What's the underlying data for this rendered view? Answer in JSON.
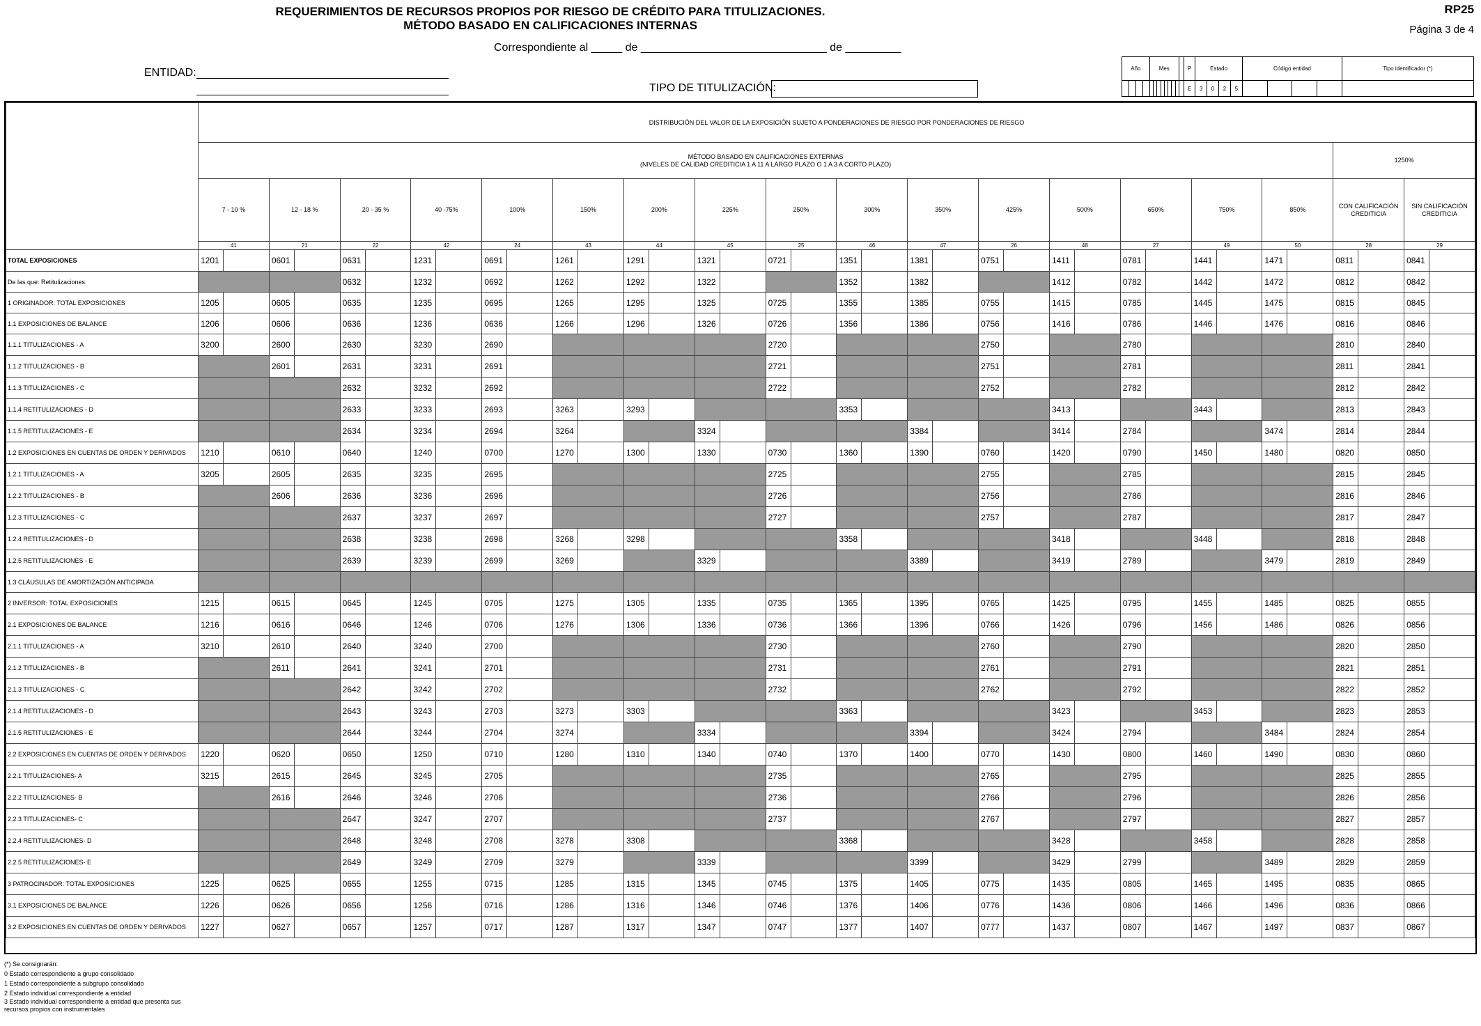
{
  "header": {
    "title_line1": "REQUERIMIENTOS DE RECURSOS PROPIOS POR RIESGO DE CRÉDITO PARA TITULIZACIONES.",
    "title_line2": "MÉTODO BASADO EN CALIFICACIONES INTERNAS",
    "form_code": "RP25",
    "page": "Página 3 de 4",
    "correspondiente": "Correspondiente al _____ de ______________________________ de _________",
    "entidad_label": "ENTIDAD:",
    "tipo_label": "TIPO DE TITULIZACIÓN:"
  },
  "idbox": {
    "labels": [
      "Año",
      "Mes",
      "P",
      "Estado",
      "Código entidad",
      "Tipo identificador (*)"
    ],
    "estado_values": [
      "E",
      "3",
      "0",
      "2",
      "5"
    ]
  },
  "grid": {
    "main_header": "DISTRIBUCIÓN DEL VALOR DE LA EXPOSICIÓN SUJETO A PONDERACIONES DE RIESGO POR PONDERACIONES DE RIESGO",
    "sub_header_line1": "MÉTODO BASADO EN CALIFICACIONES EXTERNAS",
    "sub_header_line2": "(NIVELES DE CALIDAD CREDITICIA 1 A 11 A LARGO PLAZO O 1 A 3 A CORTO PLAZO)",
    "pct_1250": "1250%",
    "columns": [
      {
        "label": "7 - 10 %",
        "num": "41"
      },
      {
        "label": "12 - 18 %",
        "num": "21"
      },
      {
        "label": "20 - 35 %",
        "num": "22"
      },
      {
        "label": "40 -75%",
        "num": "42"
      },
      {
        "label": "100%",
        "num": "24"
      },
      {
        "label": "150%",
        "num": "43"
      },
      {
        "label": "200%",
        "num": "44"
      },
      {
        "label": "225%",
        "num": "45"
      },
      {
        "label": "250%",
        "num": "25"
      },
      {
        "label": "300%",
        "num": "46"
      },
      {
        "label": "350%",
        "num": "47"
      },
      {
        "label": "425%",
        "num": "26"
      },
      {
        "label": "500%",
        "num": "48"
      },
      {
        "label": "650%",
        "num": "27"
      },
      {
        "label": "750%",
        "num": "49"
      },
      {
        "label": "850%",
        "num": "50"
      },
      {
        "label": "CON CALIFICACIÓN CREDITICIA",
        "num": "28"
      },
      {
        "label": "SIN CALIFICACIÓN CREDITICIA",
        "num": "29"
      }
    ],
    "rows": [
      {
        "label": "TOTAL EXPOSICIONES",
        "bold": true,
        "cells": [
          "1201",
          "0601",
          "0631",
          "1231",
          "0691",
          "1261",
          "1291",
          "1321",
          "0721",
          "1351",
          "1381",
          "0751",
          "1411",
          "0781",
          "1441",
          "1471",
          "0811",
          "0841"
        ]
      },
      {
        "label": "De las que: Retitulizaciones",
        "cells": [
          "G",
          "G",
          "0632",
          "1232",
          "0692",
          "1262",
          "1292",
          "1322",
          "G",
          "1352",
          "1382",
          "G",
          "1412",
          "0782",
          "1442",
          "1472",
          "0812",
          "0842"
        ]
      },
      {
        "label": "1 ORIGINADOR: TOTAL EXPOSICIONES",
        "cells": [
          "1205",
          "0605",
          "0635",
          "1235",
          "0695",
          "1265",
          "1295",
          "1325",
          "0725",
          "1355",
          "1385",
          "0755",
          "1415",
          "0785",
          "1445",
          "1475",
          "0815",
          "0845"
        ]
      },
      {
        "label": "1.1 EXPOSICIONES DE BALANCE",
        "cells": [
          "1206",
          "0606",
          "0636",
          "1236",
          "0636",
          "1266",
          "1296",
          "1326",
          "0726",
          "1356",
          "1386",
          "0756",
          "1416",
          "0786",
          "1446",
          "1476",
          "0816",
          "0846"
        ]
      },
      {
        "label": "1.1.1 TITULIZACIONES - A",
        "cells": [
          "3200",
          "2600",
          "2630",
          "3230",
          "2690",
          "G",
          "G",
          "G",
          "2720",
          "G",
          "G",
          "2750",
          "G",
          "2780",
          "G",
          "G",
          "2810",
          "2840"
        ]
      },
      {
        "label": "1.1.2 TITULIZACIONES - B",
        "cells": [
          "G",
          "2601",
          "2631",
          "3231",
          "2691",
          "G",
          "G",
          "G",
          "2721",
          "G",
          "G",
          "2751",
          "G",
          "2781",
          "G",
          "G",
          "2811",
          "2841"
        ]
      },
      {
        "label": "1.1.3 TITULIZACIONES - C",
        "cells": [
          "G",
          "G",
          "2632",
          "3232",
          "2692",
          "G",
          "G",
          "G",
          "2722",
          "G",
          "G",
          "2752",
          "G",
          "2782",
          "G",
          "G",
          "2812",
          "2842"
        ]
      },
      {
        "label": "1.1.4 RETITULIZACIONES - D",
        "cells": [
          "G",
          "G",
          "2633",
          "3233",
          "2693",
          "3263",
          "3293",
          "G",
          "G",
          "3353",
          "G",
          "G",
          "3413",
          "G",
          "3443",
          "G",
          "2813",
          "2843"
        ]
      },
      {
        "label": "1.1.5 RETITULIZACIONES - E",
        "cells": [
          "G",
          "G",
          "2634",
          "3234",
          "2694",
          "3264",
          "G",
          "3324",
          "G",
          "G",
          "3384",
          "G",
          "3414",
          "2784",
          "G",
          "3474",
          "2814",
          "2844"
        ]
      },
      {
        "label": "1.2 EXPOSICIONES EN CUENTAS DE ORDEN Y DERIVADOS",
        "cells": [
          "1210",
          "0610",
          "0640",
          "1240",
          "0700",
          "1270",
          "1300",
          "1330",
          "0730",
          "1360",
          "1390",
          "0760",
          "1420",
          "0790",
          "1450",
          "1480",
          "0820",
          "0850"
        ]
      },
      {
        "label": "1.2.1 TITULIZACIONES - A",
        "cells": [
          "3205",
          "2605",
          "2635",
          "3235",
          "2695",
          "G",
          "G",
          "G",
          "2725",
          "G",
          "G",
          "2755",
          "G",
          "2785",
          "G",
          "G",
          "2815",
          "2845"
        ]
      },
      {
        "label": "1.2.2 TITULIZACIONES - B",
        "cells": [
          "G",
          "2606",
          "2636",
          "3236",
          "2696",
          "G",
          "G",
          "G",
          "2726",
          "G",
          "G",
          "2756",
          "G",
          "2786",
          "G",
          "G",
          "2816",
          "2846"
        ]
      },
      {
        "label": "1.2.3 TITULIZACIONES - C",
        "cells": [
          "G",
          "G",
          "2637",
          "3237",
          "2697",
          "G",
          "G",
          "G",
          "2727",
          "G",
          "G",
          "2757",
          "G",
          "2787",
          "G",
          "G",
          "2817",
          "2847"
        ]
      },
      {
        "label": "1.2.4 RETITULIZACIONES - D",
        "cells": [
          "G",
          "G",
          "2638",
          "3238",
          "2698",
          "3268",
          "3298",
          "G",
          "G",
          "3358",
          "G",
          "G",
          "3418",
          "G",
          "3448",
          "G",
          "2818",
          "2848"
        ]
      },
      {
        "label": "1.2.5 RETITULIZACIONES - E",
        "cells": [
          "G",
          "G",
          "2639",
          "3239",
          "2699",
          "3269",
          "G",
          "3329",
          "G",
          "G",
          "3389",
          "G",
          "3419",
          "2789",
          "G",
          "3479",
          "2819",
          "2849"
        ]
      },
      {
        "label": "1.3 CLÁUSULAS DE AMORTIZACIÓN ANTICIPADA",
        "cells": [
          "G",
          "G",
          "G",
          "G",
          "G",
          "G",
          "G",
          "G",
          "G",
          "G",
          "G",
          "G",
          "G",
          "G",
          "G",
          "G",
          "G",
          "G"
        ]
      },
      {
        "label": "2 INVERSOR: TOTAL EXPOSICIONES",
        "cells": [
          "1215",
          "0615",
          "0645",
          "1245",
          "0705",
          "1275",
          "1305",
          "1335",
          "0735",
          "1365",
          "1395",
          "0765",
          "1425",
          "0795",
          "1455",
          "1485",
          "0825",
          "0855"
        ]
      },
      {
        "label": "2.1 EXPOSICIONES DE BALANCE",
        "cells": [
          "1216",
          "0616",
          "0646",
          "1246",
          "0706",
          "1276",
          "1306",
          "1336",
          "0736",
          "1366",
          "1396",
          "0766",
          "1426",
          "0796",
          "1456",
          "1486",
          "0826",
          "0856"
        ]
      },
      {
        "label": "2.1.1 TITULIZACIONES - A",
        "cells": [
          "3210",
          "2610",
          "2640",
          "3240",
          "2700",
          "G",
          "G",
          "G",
          "2730",
          "G",
          "G",
          "2760",
          "G",
          "2790",
          "G",
          "G",
          "2820",
          "2850"
        ]
      },
      {
        "label": "2.1.2 TITULIZACIONES - B",
        "cells": [
          "G",
          "2611",
          "2641",
          "3241",
          "2701",
          "G",
          "G",
          "G",
          "2731",
          "G",
          "G",
          "2761",
          "G",
          "2791",
          "G",
          "G",
          "2821",
          "2851"
        ]
      },
      {
        "label": "2.1.3 TITULIZACIONES - C",
        "cells": [
          "G",
          "G",
          "2642",
          "3242",
          "2702",
          "G",
          "G",
          "G",
          "2732",
          "G",
          "G",
          "2762",
          "G",
          "2792",
          "G",
          "G",
          "2822",
          "2852"
        ]
      },
      {
        "label": "2.1.4 RETITULIZACIONES - D",
        "cells": [
          "G",
          "G",
          "2643",
          "3243",
          "2703",
          "3273",
          "3303",
          "G",
          "G",
          "3363",
          "G",
          "G",
          "3423",
          "G",
          "3453",
          "G",
          "2823",
          "2853"
        ]
      },
      {
        "label": "2.1.5 RETITULIZACIONES - E",
        "cells": [
          "G",
          "G",
          "2644",
          "3244",
          "2704",
          "3274",
          "G",
          "3334",
          "G",
          "G",
          "3394",
          "G",
          "3424",
          "2794",
          "G",
          "3484",
          "2824",
          "2854"
        ]
      },
      {
        "label": "2.2 EXPOSICIONES EN CUENTAS DE ORDEN Y DERIVADOS",
        "cells": [
          "1220",
          "0620",
          "0650",
          "1250",
          "0710",
          "1280",
          "1310",
          "1340",
          "0740",
          "1370",
          "1400",
          "0770",
          "1430",
          "0800",
          "1460",
          "1490",
          "0830",
          "0860"
        ]
      },
      {
        "label": "2.2.1 TITULIZACIONES- A",
        "cells": [
          "3215",
          "2615",
          "2645",
          "3245",
          "2705",
          "G",
          "G",
          "G",
          "2735",
          "G",
          "G",
          "2765",
          "G",
          "2795",
          "G",
          "G",
          "2825",
          "2855"
        ]
      },
      {
        "label": "2.2.2 TITULIZACIONES- B",
        "cells": [
          "G",
          "2616",
          "2646",
          "3246",
          "2706",
          "G",
          "G",
          "G",
          "2736",
          "G",
          "G",
          "2766",
          "G",
          "2796",
          "G",
          "G",
          "2826",
          "2856"
        ]
      },
      {
        "label": "2.2.3 TITULIZACIONES- C",
        "cells": [
          "G",
          "G",
          "2647",
          "3247",
          "2707",
          "G",
          "G",
          "G",
          "2737",
          "G",
          "G",
          "2767",
          "G",
          "2797",
          "G",
          "G",
          "2827",
          "2857"
        ]
      },
      {
        "label": "2.2.4 RETITULIZACIONES- D",
        "cells": [
          "G",
          "G",
          "2648",
          "3248",
          "2708",
          "3278",
          "3308",
          "G",
          "G",
          "3368",
          "G",
          "G",
          "3428",
          "G",
          "3458",
          "G",
          "2828",
          "2858"
        ]
      },
      {
        "label": "2.2.5 RETITULIZACIONES- E",
        "cells": [
          "G",
          "G",
          "2649",
          "3249",
          "2709",
          "3279",
          "G",
          "3339",
          "G",
          "G",
          "3399",
          "G",
          "3429",
          "2799",
          "G",
          "3489",
          "2829",
          "2859"
        ]
      },
      {
        "label": "3 PATROCINADOR: TOTAL EXPOSICIONES",
        "cells": [
          "1225",
          "0625",
          "0655",
          "1255",
          "0715",
          "1285",
          "1315",
          "1345",
          "0745",
          "1375",
          "1405",
          "0775",
          "1435",
          "0805",
          "1465",
          "1495",
          "0835",
          "0865"
        ]
      },
      {
        "label": "3.1 EXPOSICIONES DE BALANCE",
        "cells": [
          "1226",
          "0626",
          "0656",
          "1256",
          "0716",
          "1286",
          "1316",
          "1346",
          "0746",
          "1376",
          "1406",
          "0776",
          "1436",
          "0806",
          "1466",
          "1496",
          "0836",
          "0866"
        ]
      },
      {
        "label": "3.2 EXPOSICIONES EN CUENTAS DE ORDEN Y DERIVADOS",
        "cells": [
          "1227",
          "0627",
          "0657",
          "1257",
          "0717",
          "1287",
          "1317",
          "1347",
          "0747",
          "1377",
          "1407",
          "0777",
          "1437",
          "0807",
          "1467",
          "1497",
          "0837",
          "0867"
        ]
      }
    ]
  },
  "notes": [
    "(*) Se consignarán:",
    "0 Estado correspondiente a grupo consolidado",
    "1 Estado correspondiente a subgrupo consolidado",
    "2 Estado individual correspondiente a entidad",
    "3 Estado individual correspondiente a entidad que presenta sus recursos propios con instrumentales"
  ]
}
